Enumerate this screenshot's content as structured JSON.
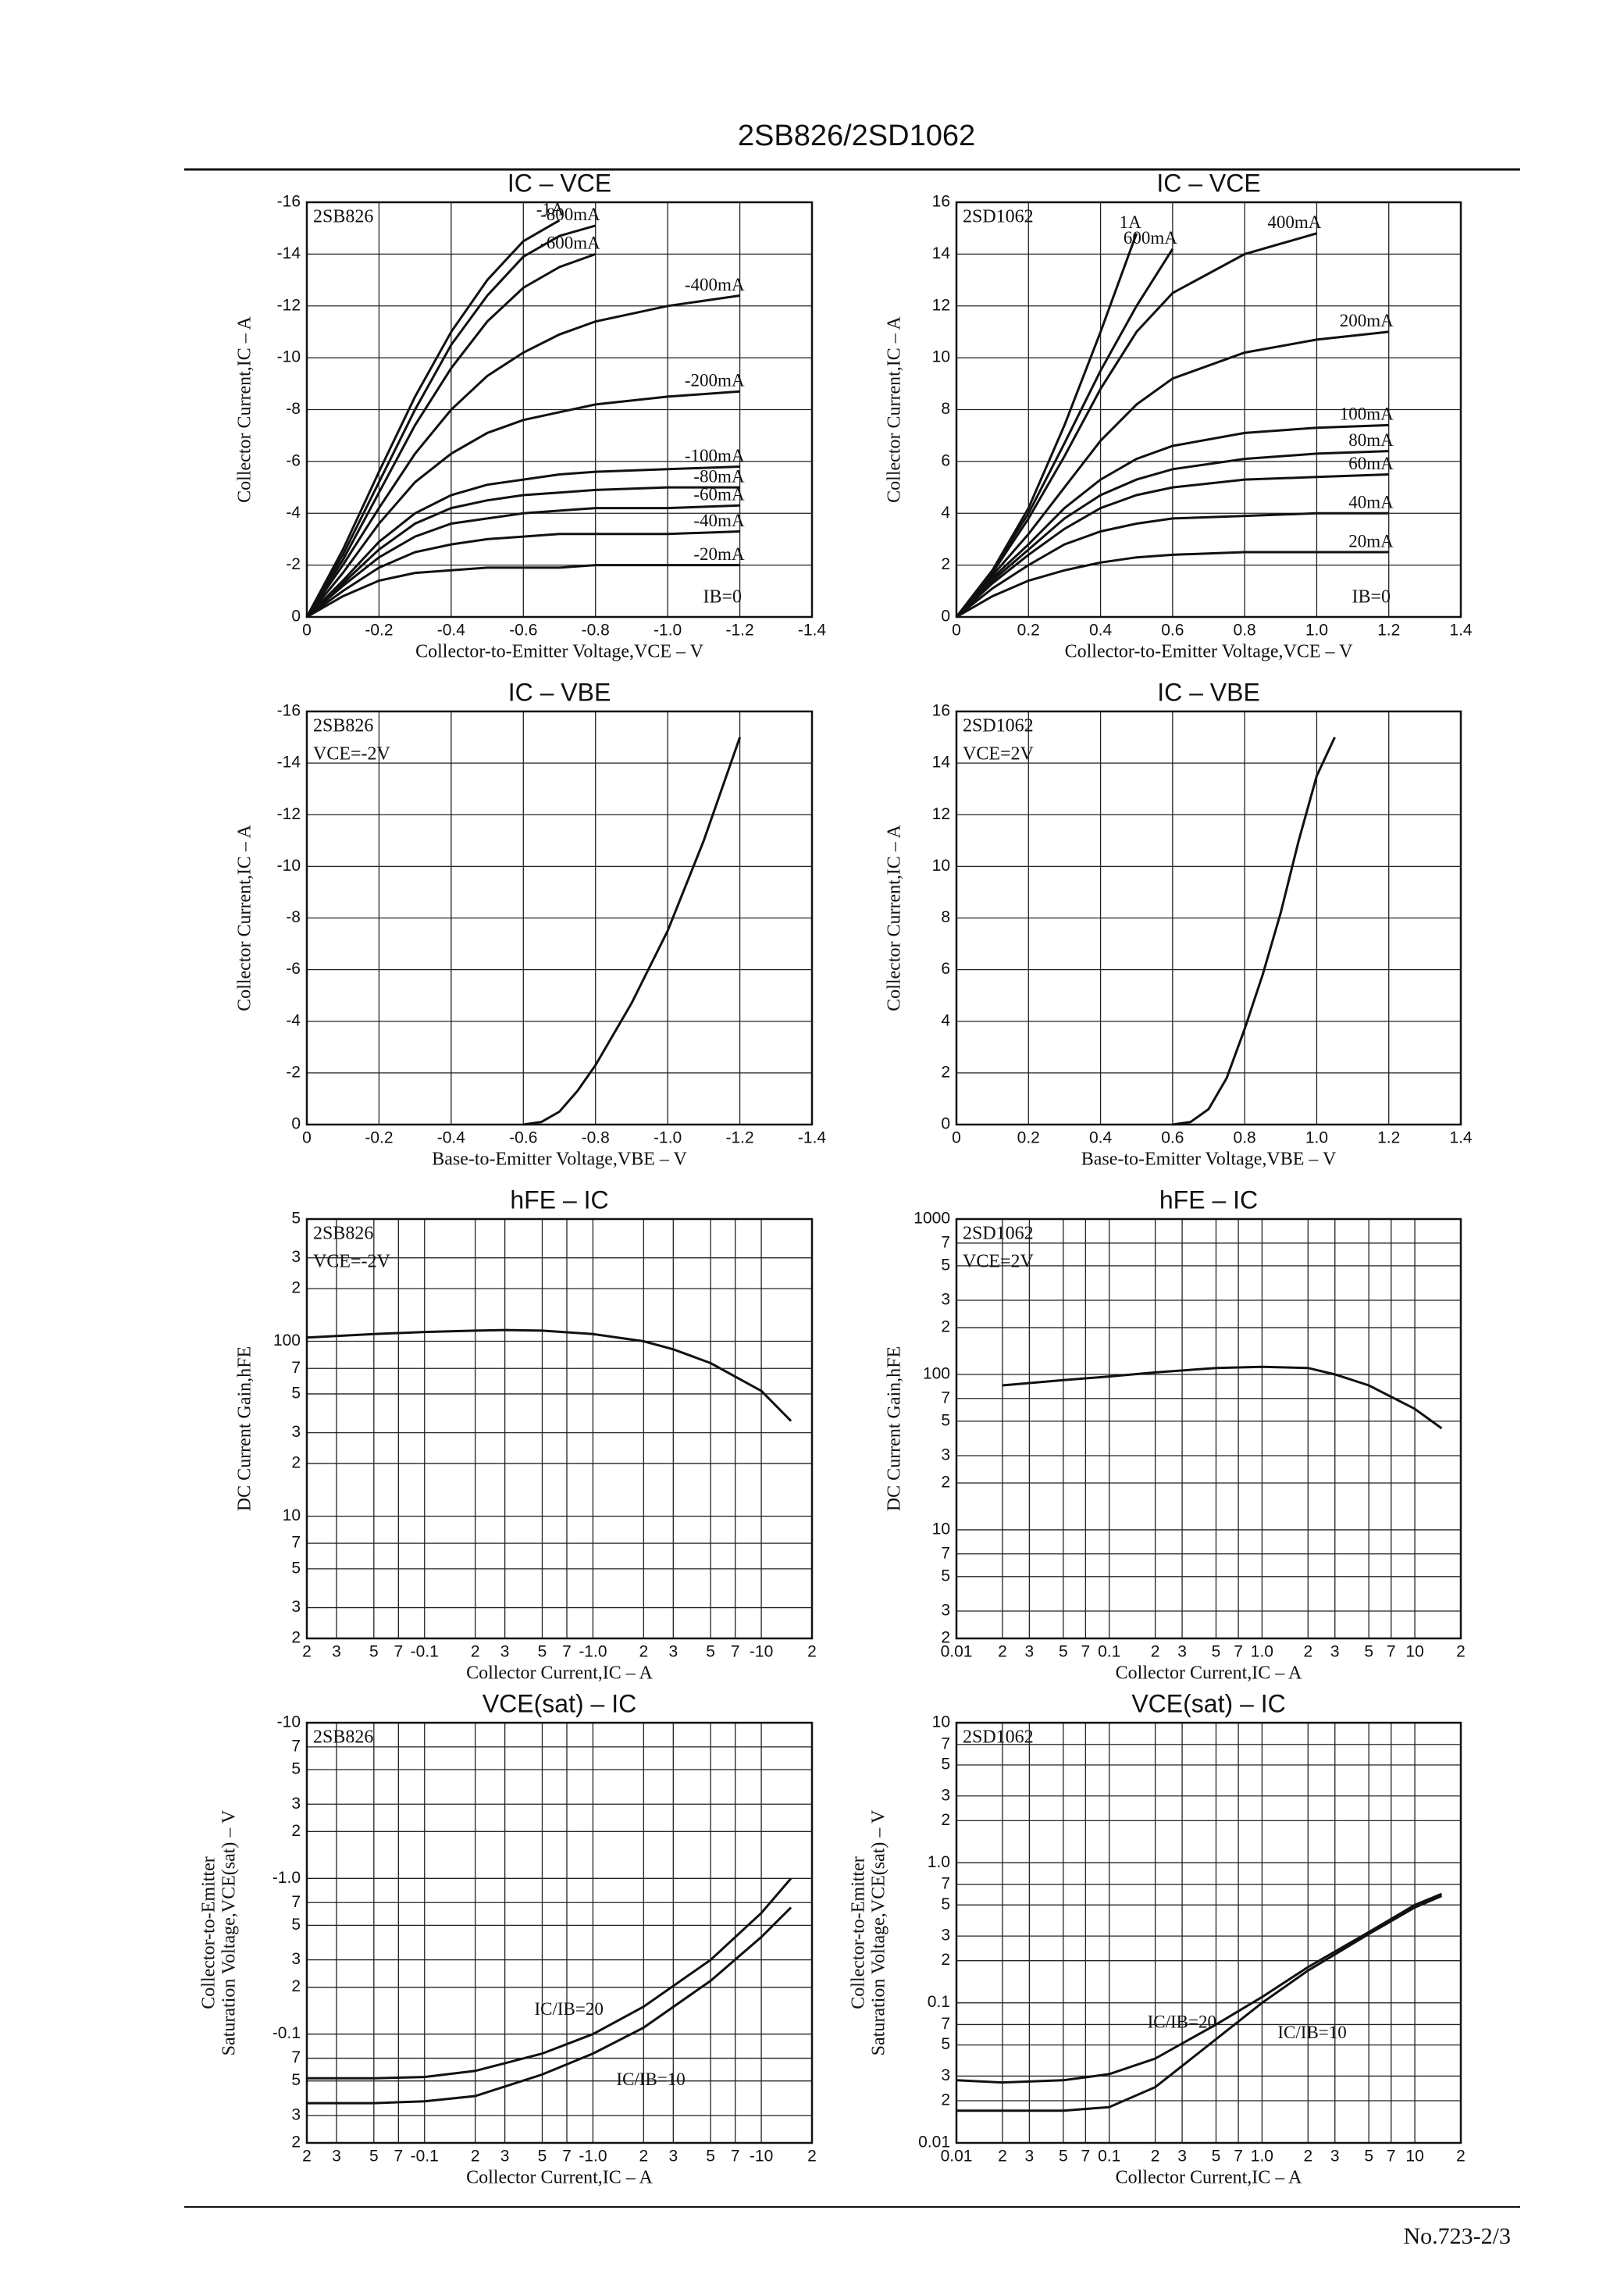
{
  "header": {
    "title": "2SB826/2SD1062"
  },
  "footer": {
    "text": "No.723-2/3"
  },
  "chart_data": [
    {
      "type": "line",
      "title": "IC – VCE",
      "annotations": [
        "2SB826"
      ],
      "corner_note": "IB=0",
      "xlabel": "Collector-to-Emitter Voltage,VCE – V",
      "ylabel": [
        "Collector Current,IC – A"
      ],
      "xlim": [
        0,
        -1.4
      ],
      "ylim": [
        0,
        -16
      ],
      "grid": true,
      "color": "#111",
      "xticks": [
        0,
        -0.2,
        -0.4,
        -0.6,
        -0.8,
        {
          "value": -1,
          "label": "-1.0"
        },
        -1.2,
        -1.4
      ],
      "yticks": [
        0,
        -2,
        -4,
        -6,
        -8,
        -10,
        -12,
        -14,
        -16
      ],
      "x": [
        0,
        -0.1,
        -0.2,
        -0.3,
        -0.4,
        -0.5,
        -0.6,
        -0.7,
        -0.8,
        -1.0,
        -1.2
      ],
      "series": [
        {
          "name": "-1A",
          "values": [
            0,
            -2.6,
            -5.6,
            -8.5,
            -11,
            -13,
            -14.5,
            -15.3,
            null,
            null,
            null
          ]
        },
        {
          "name": "-800mA",
          "values": [
            0,
            -2.4,
            -5.2,
            -8,
            -10.5,
            -12.4,
            -13.9,
            -14.7,
            -15.1,
            null,
            null
          ]
        },
        {
          "name": "-600mA",
          "values": [
            0,
            -2.2,
            -4.8,
            -7.4,
            -9.6,
            -11.4,
            -12.7,
            -13.5,
            -14,
            null,
            null
          ]
        },
        {
          "name": "-400mA",
          "values": [
            0,
            -2,
            -4.2,
            -6.3,
            -8,
            -9.3,
            -10.2,
            -10.9,
            -11.4,
            -12,
            -12.4
          ]
        },
        {
          "name": "-200mA",
          "values": [
            0,
            -1.7,
            -3.6,
            -5.2,
            -6.3,
            -7.1,
            -7.6,
            -7.9,
            -8.2,
            -8.5,
            -8.7
          ]
        },
        {
          "name": "-100mA",
          "values": [
            0,
            -1.4,
            -2.9,
            -4,
            -4.7,
            -5.1,
            -5.3,
            -5.5,
            -5.6,
            -5.7,
            -5.8
          ]
        },
        {
          "name": "-80mA",
          "values": [
            0,
            -1.3,
            -2.6,
            -3.6,
            -4.2,
            -4.5,
            -4.7,
            -4.8,
            -4.9,
            -5,
            -5
          ]
        },
        {
          "name": "-60mA",
          "values": [
            0,
            -1.2,
            -2.3,
            -3.1,
            -3.6,
            -3.8,
            -4,
            -4.1,
            -4.2,
            -4.2,
            -4.3
          ]
        },
        {
          "name": "-40mA",
          "values": [
            0,
            -1,
            -1.9,
            -2.5,
            -2.8,
            -3,
            -3.1,
            -3.2,
            -3.2,
            -3.2,
            -3.3
          ]
        },
        {
          "name": "-20mA",
          "values": [
            0,
            -0.8,
            -1.4,
            -1.7,
            -1.8,
            -1.9,
            -1.9,
            -1.9,
            -2,
            -2,
            -2
          ]
        }
      ]
    },
    {
      "type": "line",
      "title": "IC – VCE",
      "annotations": [
        "2SD1062"
      ],
      "corner_note": "IB=0",
      "xlabel": "Collector-to-Emitter Voltage,VCE – V",
      "ylabel": [
        "Collector Current,IC – A"
      ],
      "xlim": [
        0,
        1.4
      ],
      "ylim": [
        0,
        16
      ],
      "grid": true,
      "color": "#111",
      "xticks": [
        0,
        0.2,
        0.4,
        0.6,
        0.8,
        {
          "value": 1,
          "label": "1.0"
        },
        1.2,
        1.4
      ],
      "yticks": [
        0,
        2,
        4,
        6,
        8,
        10,
        12,
        14,
        16
      ],
      "x": [
        0,
        0.1,
        0.2,
        0.3,
        0.4,
        0.5,
        0.6,
        0.8,
        1.0,
        1.2
      ],
      "series": [
        {
          "name": "1A",
          "values": [
            0,
            1.8,
            4.2,
            7.4,
            11,
            14.8,
            null,
            null,
            null,
            null
          ]
        },
        {
          "name": "600mA",
          "values": [
            0,
            1.8,
            4,
            6.7,
            9.5,
            12,
            14.2,
            null,
            null,
            null
          ]
        },
        {
          "name": "400mA",
          "values": [
            0,
            1.7,
            3.8,
            6.2,
            8.8,
            11,
            12.5,
            14,
            14.8,
            null
          ]
        },
        {
          "name": "200mA",
          "values": [
            0,
            1.6,
            3.2,
            5,
            6.8,
            8.2,
            9.2,
            10.2,
            10.7,
            11
          ]
        },
        {
          "name": "100mA",
          "values": [
            0,
            1.5,
            2.8,
            4.2,
            5.3,
            6.1,
            6.6,
            7.1,
            7.3,
            7.4
          ]
        },
        {
          "name": "80mA",
          "values": [
            0,
            1.4,
            2.6,
            3.8,
            4.7,
            5.3,
            5.7,
            6.1,
            6.3,
            6.4
          ]
        },
        {
          "name": "60mA",
          "values": [
            0,
            1.3,
            2.4,
            3.4,
            4.2,
            4.7,
            5,
            5.3,
            5.4,
            5.5
          ]
        },
        {
          "name": "40mA",
          "values": [
            0,
            1.1,
            2,
            2.8,
            3.3,
            3.6,
            3.8,
            3.9,
            4,
            4
          ]
        },
        {
          "name": "20mA",
          "values": [
            0,
            0.8,
            1.4,
            1.8,
            2.1,
            2.3,
            2.4,
            2.5,
            2.5,
            2.5
          ]
        }
      ]
    },
    {
      "type": "line",
      "title": "IC – VBE",
      "annotations": [
        "2SB826",
        "VCE=-2V"
      ],
      "xlabel": "Base-to-Emitter Voltage,VBE – V",
      "ylabel": [
        "Collector Current,IC – A"
      ],
      "xlim": [
        0,
        -1.4
      ],
      "ylim": [
        0,
        -16
      ],
      "grid": true,
      "color": "#111",
      "xticks": [
        0,
        -0.2,
        -0.4,
        -0.6,
        -0.8,
        {
          "value": -1,
          "label": "-1.0"
        },
        -1.2,
        -1.4
      ],
      "yticks": [
        0,
        -2,
        -4,
        -6,
        -8,
        -10,
        -12,
        -14,
        -16
      ],
      "x": [
        -0.6,
        -0.65,
        -0.7,
        -0.75,
        -0.8,
        -0.9,
        -1.0,
        -1.1,
        -1.2
      ],
      "series": [
        {
          "values": [
            0,
            -0.1,
            -0.5,
            -1.3,
            -2.3,
            -4.7,
            -7.5,
            -11,
            -15
          ]
        }
      ]
    },
    {
      "type": "line",
      "title": "IC – VBE",
      "annotations": [
        "2SD1062",
        "VCE=2V"
      ],
      "xlabel": "Base-to-Emitter Voltage,VBE – V",
      "ylabel": [
        "Collector Current,IC – A"
      ],
      "xlim": [
        0,
        1.4
      ],
      "ylim": [
        0,
        16
      ],
      "grid": true,
      "color": "#111",
      "xticks": [
        0,
        0.2,
        0.4,
        0.6,
        0.8,
        {
          "value": 1,
          "label": "1.0"
        },
        1.2,
        1.4
      ],
      "yticks": [
        0,
        2,
        4,
        6,
        8,
        10,
        12,
        14,
        16
      ],
      "x": [
        0.6,
        0.65,
        0.7,
        0.75,
        0.8,
        0.85,
        0.9,
        0.95,
        1.0,
        1.05
      ],
      "series": [
        {
          "values": [
            0,
            0.1,
            0.6,
            1.8,
            3.7,
            5.8,
            8.2,
            11,
            13.5,
            15
          ]
        }
      ]
    },
    {
      "type": "line",
      "title": "hFE – IC",
      "annotations": [
        "2SB826",
        "VCE=-2V"
      ],
      "xlabel": "Collector Current,IC – A",
      "ylabel": [
        "DC Current Gain,hFE"
      ],
      "xlog": true,
      "ylog": true,
      "xlim": [
        -0.02,
        -20
      ],
      "ylim": [
        2,
        500
      ],
      "grid": true,
      "color": "#111",
      "xticks": [
        {
          "value": -0.02,
          "label": "2"
        },
        {
          "value": -0.03,
          "label": "3"
        },
        {
          "value": -0.05,
          "label": "5"
        },
        {
          "value": -0.07,
          "label": "7"
        },
        -0.1,
        {
          "value": -0.2,
          "label": "2"
        },
        {
          "value": -0.3,
          "label": "3"
        },
        {
          "value": -0.5,
          "label": "5"
        },
        {
          "value": -0.7,
          "label": "7"
        },
        {
          "value": -1,
          "label": "-1.0"
        },
        {
          "value": -2,
          "label": "2"
        },
        {
          "value": -3,
          "label": "3"
        },
        {
          "value": -5,
          "label": "5"
        },
        {
          "value": -7,
          "label": "7"
        },
        -10,
        {
          "value": -20,
          "label": "2"
        }
      ],
      "yticks": [
        2,
        3,
        5,
        7,
        10,
        {
          "value": 20,
          "label": "2"
        },
        {
          "value": 30,
          "label": "3"
        },
        {
          "value": 50,
          "label": "5"
        },
        {
          "value": 70,
          "label": "7"
        },
        100,
        {
          "value": 200,
          "label": "2"
        },
        {
          "value": 300,
          "label": "3"
        },
        {
          "value": 500,
          "label": "5"
        }
      ],
      "x": [
        -0.02,
        -0.05,
        -0.1,
        -0.2,
        -0.3,
        -0.5,
        -1,
        -2,
        -3,
        -5,
        -10,
        -15
      ],
      "series": [
        {
          "values": [
            105,
            110,
            113,
            115,
            116,
            115,
            110,
            100,
            90,
            75,
            52,
            35
          ]
        }
      ]
    },
    {
      "type": "line",
      "title": "hFE – IC",
      "annotations": [
        "2SD1062",
        "VCE=2V"
      ],
      "xlabel": "Collector Current,IC – A",
      "ylabel": [
        "DC Current Gain,hFE"
      ],
      "xlog": true,
      "ylog": true,
      "xlim": [
        0.01,
        20
      ],
      "ylim": [
        2,
        1000
      ],
      "grid": true,
      "color": "#111",
      "xticks": [
        0.01,
        {
          "value": 0.02,
          "label": "2"
        },
        {
          "value": 0.03,
          "label": "3"
        },
        {
          "value": 0.05,
          "label": "5"
        },
        {
          "value": 0.07,
          "label": "7"
        },
        0.1,
        {
          "value": 0.2,
          "label": "2"
        },
        {
          "value": 0.3,
          "label": "3"
        },
        {
          "value": 0.5,
          "label": "5"
        },
        {
          "value": 0.7,
          "label": "7"
        },
        {
          "value": 1,
          "label": "1.0"
        },
        2,
        3,
        5,
        7,
        10,
        {
          "value": 20,
          "label": "2"
        }
      ],
      "yticks": [
        2,
        3,
        5,
        7,
        10,
        {
          "value": 20,
          "label": "2"
        },
        {
          "value": 30,
          "label": "3"
        },
        {
          "value": 50,
          "label": "5"
        },
        {
          "value": 70,
          "label": "7"
        },
        100,
        {
          "value": 200,
          "label": "2"
        },
        {
          "value": 300,
          "label": "3"
        },
        {
          "value": 500,
          "label": "5"
        },
        {
          "value": 700,
          "label": "7"
        },
        1000
      ],
      "x": [
        0.02,
        0.05,
        0.1,
        0.2,
        0.5,
        1,
        2,
        3,
        5,
        10,
        15
      ],
      "series": [
        {
          "values": [
            85,
            92,
            97,
            103,
            110,
            112,
            110,
            100,
            85,
            60,
            45
          ]
        }
      ]
    },
    {
      "type": "line",
      "title": "VCE(sat) – IC",
      "annotations": [
        "2SB826"
      ],
      "xlabel": "Collector Current,IC – A",
      "ylabel": [
        "Collector-to-Emitter",
        "Saturation Voltage,VCE(sat) – V"
      ],
      "xlog": true,
      "ylog": true,
      "xlim": [
        -0.02,
        -20
      ],
      "ylim": [
        -0.02,
        -10
      ],
      "grid": true,
      "color": "#111",
      "xticks": [
        {
          "value": -0.02,
          "label": "2"
        },
        {
          "value": -0.03,
          "label": "3"
        },
        {
          "value": -0.05,
          "label": "5"
        },
        {
          "value": -0.07,
          "label": "7"
        },
        -0.1,
        {
          "value": -0.2,
          "label": "2"
        },
        {
          "value": -0.3,
          "label": "3"
        },
        {
          "value": -0.5,
          "label": "5"
        },
        {
          "value": -0.7,
          "label": "7"
        },
        {
          "value": -1,
          "label": "-1.0"
        },
        {
          "value": -2,
          "label": "2"
        },
        {
          "value": -3,
          "label": "3"
        },
        {
          "value": -5,
          "label": "5"
        },
        {
          "value": -7,
          "label": "7"
        },
        -10,
        {
          "value": -20,
          "label": "2"
        }
      ],
      "yticks": [
        {
          "value": -0.02,
          "label": "2"
        },
        {
          "value": -0.03,
          "label": "3"
        },
        {
          "value": -0.05,
          "label": "5"
        },
        {
          "value": -0.07,
          "label": "7"
        },
        -0.1,
        {
          "value": -0.2,
          "label": "2"
        },
        {
          "value": -0.3,
          "label": "3"
        },
        {
          "value": -0.5,
          "label": "5"
        },
        {
          "value": -0.7,
          "label": "7"
        },
        {
          "value": -1,
          "label": "-1.0"
        },
        {
          "value": -2,
          "label": "2"
        },
        {
          "value": -3,
          "label": "3"
        },
        {
          "value": -5,
          "label": "5"
        },
        {
          "value": -7,
          "label": "7"
        },
        -10
      ],
      "x": [
        -0.02,
        -0.05,
        -0.1,
        -0.2,
        -0.5,
        -1,
        -2,
        -5,
        -10,
        -15
      ],
      "series": [
        {
          "name": "IC/IB=20",
          "values": [
            -0.052,
            -0.052,
            -0.053,
            -0.058,
            -0.075,
            -0.1,
            -0.15,
            -0.3,
            -0.6,
            -1.0
          ]
        },
        {
          "name": "IC/IB=10",
          "values": [
            -0.036,
            -0.036,
            -0.037,
            -0.04,
            -0.055,
            -0.075,
            -0.11,
            -0.22,
            -0.42,
            -0.65
          ]
        }
      ]
    },
    {
      "type": "line",
      "title": "VCE(sat) – IC",
      "annotations": [
        "2SD1062"
      ],
      "xlabel": "Collector Current,IC – A",
      "ylabel": [
        "Collector-to-Emitter",
        "Saturation Voltage,VCE(sat) – V"
      ],
      "xlog": true,
      "ylog": true,
      "xlim": [
        0.01,
        20
      ],
      "ylim": [
        0.01,
        10
      ],
      "grid": true,
      "color": "#111",
      "xticks": [
        0.01,
        {
          "value": 0.02,
          "label": "2"
        },
        {
          "value": 0.03,
          "label": "3"
        },
        {
          "value": 0.05,
          "label": "5"
        },
        {
          "value": 0.07,
          "label": "7"
        },
        0.1,
        {
          "value": 0.2,
          "label": "2"
        },
        {
          "value": 0.3,
          "label": "3"
        },
        {
          "value": 0.5,
          "label": "5"
        },
        {
          "value": 0.7,
          "label": "7"
        },
        {
          "value": 1,
          "label": "1.0"
        },
        2,
        3,
        5,
        7,
        10,
        {
          "value": 20,
          "label": "2"
        }
      ],
      "yticks": [
        0.01,
        {
          "value": 0.02,
          "label": "2"
        },
        {
          "value": 0.03,
          "label": "3"
        },
        {
          "value": 0.05,
          "label": "5"
        },
        {
          "value": 0.07,
          "label": "7"
        },
        0.1,
        {
          "value": 0.2,
          "label": "2"
        },
        {
          "value": 0.3,
          "label": "3"
        },
        {
          "value": 0.5,
          "label": "5"
        },
        {
          "value": 0.7,
          "label": "7"
        },
        {
          "value": 1,
          "label": "1.0"
        },
        2,
        3,
        5,
        7,
        10
      ],
      "x": [
        0.01,
        0.02,
        0.05,
        0.1,
        0.2,
        0.5,
        1,
        2,
        5,
        10,
        15
      ],
      "series": [
        {
          "name": "IC/IB=20",
          "values": [
            0.028,
            0.027,
            0.028,
            0.031,
            0.04,
            0.07,
            0.11,
            0.18,
            0.32,
            0.5,
            0.6
          ]
        },
        {
          "name": "IC/IB=10",
          "values": [
            0.017,
            0.017,
            0.017,
            0.018,
            0.025,
            0.055,
            0.1,
            0.17,
            0.31,
            0.48,
            0.58
          ]
        }
      ]
    }
  ]
}
